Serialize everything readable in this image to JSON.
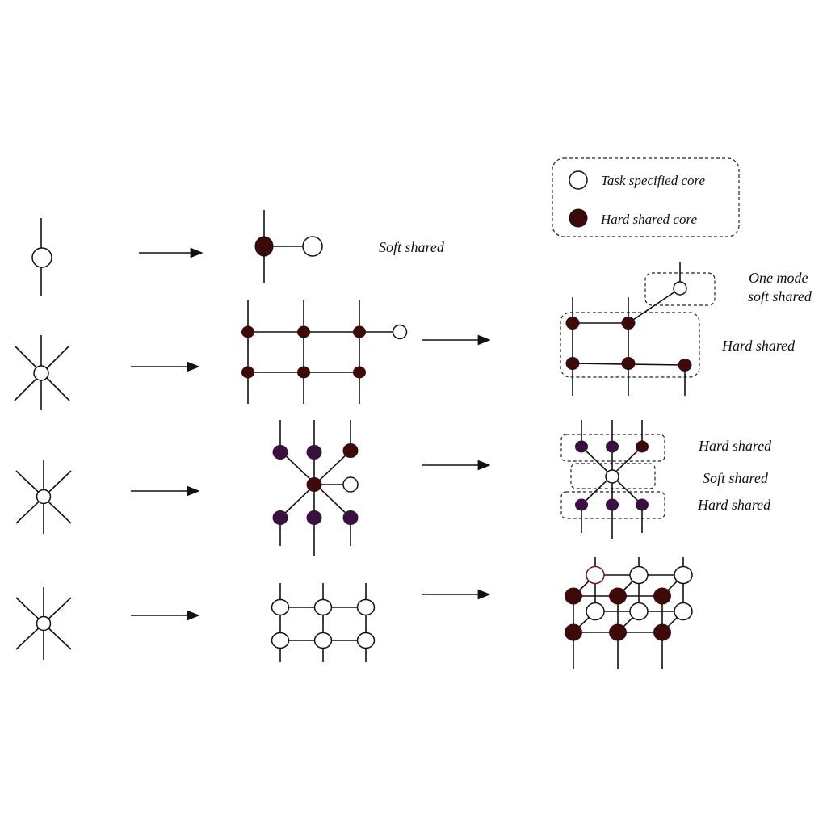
{
  "legend": {
    "task_core_label": "Task specified core",
    "hard_core_label": "Hard shared core"
  },
  "labels": {
    "soft_shared_row1": "Soft shared",
    "one_mode_line1": "One mode",
    "one_mode_line2": "soft shared",
    "hard_shared_row2": "Hard shared",
    "hard_shared_row3_top": "Hard shared",
    "soft_shared_row3": "Soft shared",
    "hard_shared_row3_bottom": "Hard shared"
  },
  "colors": {
    "hard_shared": "#3d0a0a",
    "purple_core": "#3a1040",
    "task_core": "#ffffff",
    "line": "#111111"
  }
}
